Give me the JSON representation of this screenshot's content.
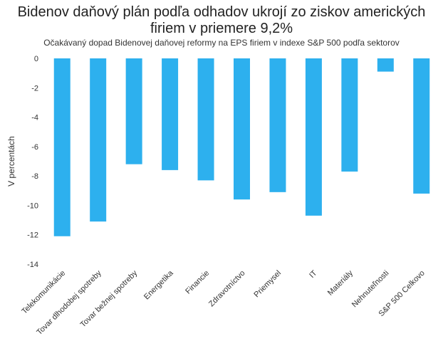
{
  "chart_data": {
    "type": "bar",
    "title": "Bidenov daňový plán podľa odhadov ukrojí zo ziskov amerických firiem v priemere 9,2%",
    "subtitle": "Očakávaný dopad Bidenovej daňovej reformy na EPS firiem v indexe S&P 500 podľa sektorov",
    "xlabel": "",
    "ylabel": "V percentách",
    "ylim": [
      -14,
      0
    ],
    "yticks": [
      0,
      -2,
      -4,
      -6,
      -8,
      -10,
      -12,
      -14
    ],
    "grid": false,
    "legend": "none",
    "bar_color": "#2db0ee",
    "categories": [
      "Telekomunikácie",
      "Tovar dlhodobej spotreby",
      "Tovar bežnej spotreby",
      "Energetika",
      "Financie",
      "Zdravotníctvo",
      "Priemysel",
      "IT",
      "Materiály",
      "Nehnuteľnosti",
      "S&P 500 Celkovo"
    ],
    "values": [
      -12.1,
      -11.1,
      -7.2,
      -7.6,
      -8.3,
      -9.6,
      -9.1,
      -10.7,
      -7.7,
      -0.9,
      -9.2
    ]
  }
}
